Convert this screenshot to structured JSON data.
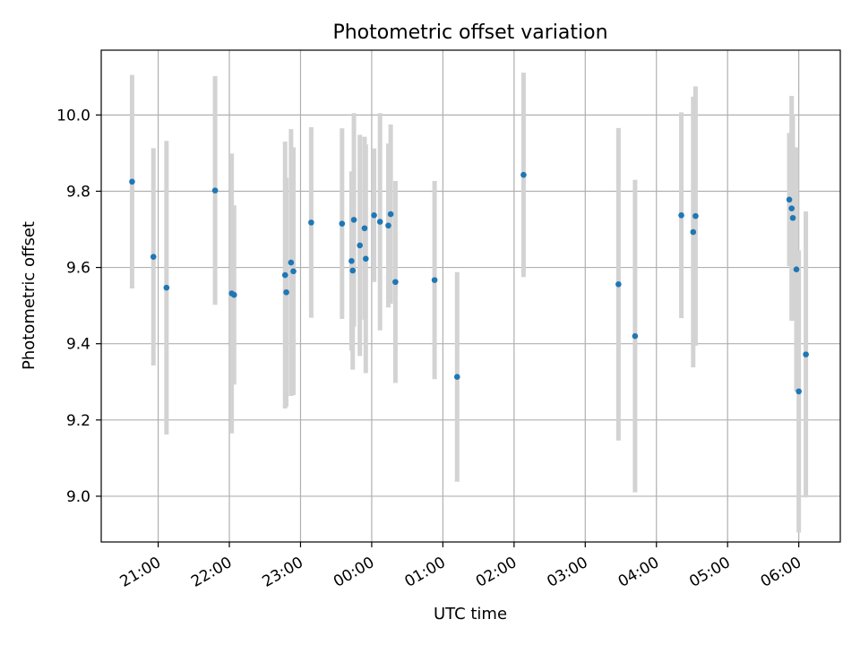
{
  "chart_data": {
    "type": "scatter",
    "title": "Photometric offset variation",
    "xlabel": "UTC time",
    "ylabel": "Photometric offset",
    "x_tick_labels": [
      "21:00",
      "22:00",
      "23:00",
      "00:00",
      "01:00",
      "02:00",
      "03:00",
      "04:00",
      "05:00",
      "06:00"
    ],
    "y_tick_labels": [
      "9.0",
      "9.2",
      "9.4",
      "9.6",
      "9.8",
      "10.0"
    ],
    "x_ticks": [
      "21:00",
      "22:00",
      "23:00",
      "00:00",
      "01:00",
      "02:00",
      "03:00",
      "04:00",
      "05:00",
      "06:00"
    ],
    "y_ticks": [
      9.0,
      9.2,
      9.4,
      9.6,
      9.8,
      10.0
    ],
    "xlim": [
      "20:12",
      "06:35"
    ],
    "ylim": [
      8.88,
      10.17
    ],
    "grid": true,
    "x_tick_rotation": "30deg",
    "marker_color": "#1f77b4",
    "errorbar_color": "#d3d3d3",
    "points": [
      {
        "x": "20:38",
        "y": 9.825,
        "err": 0.28
      },
      {
        "x": "20:56",
        "y": 9.628,
        "err": 0.285
      },
      {
        "x": "21:07",
        "y": 9.547,
        "err": 0.385
      },
      {
        "x": "21:48",
        "y": 9.802,
        "err": 0.3
      },
      {
        "x": "22:02",
        "y": 9.532,
        "err": 0.367
      },
      {
        "x": "22:04",
        "y": 9.528,
        "err": 0.235
      },
      {
        "x": "22:47",
        "y": 9.58,
        "err": 0.35
      },
      {
        "x": "22:48",
        "y": 9.535,
        "err": 0.3
      },
      {
        "x": "22:52",
        "y": 9.613,
        "err": 0.35
      },
      {
        "x": "22:54",
        "y": 9.59,
        "err": 0.325
      },
      {
        "x": "23:09",
        "y": 9.718,
        "err": 0.25
      },
      {
        "x": "23:35",
        "y": 9.715,
        "err": 0.25
      },
      {
        "x": "23:43",
        "y": 9.617,
        "err": 0.235
      },
      {
        "x": "23:44",
        "y": 9.592,
        "err": 0.26
      },
      {
        "x": "23:45",
        "y": 9.725,
        "err": 0.28
      },
      {
        "x": "23:50",
        "y": 9.658,
        "err": 0.29
      },
      {
        "x": "23:54",
        "y": 9.703,
        "err": 0.24
      },
      {
        "x": "23:55",
        "y": 9.623,
        "err": 0.3
      },
      {
        "x": "00:02",
        "y": 9.737,
        "err": 0.175
      },
      {
        "x": "00:07",
        "y": 9.72,
        "err": 0.285
      },
      {
        "x": "00:14",
        "y": 9.71,
        "err": 0.215
      },
      {
        "x": "00:16",
        "y": 9.74,
        "err": 0.235
      },
      {
        "x": "00:20",
        "y": 9.562,
        "err": 0.265
      },
      {
        "x": "00:53",
        "y": 9.567,
        "err": 0.26
      },
      {
        "x": "01:12",
        "y": 9.313,
        "err": 0.275
      },
      {
        "x": "02:08",
        "y": 9.843,
        "err": 0.268
      },
      {
        "x": "03:28",
        "y": 9.556,
        "err": 0.41
      },
      {
        "x": "03:42",
        "y": 9.42,
        "err": 0.41
      },
      {
        "x": "04:21",
        "y": 9.737,
        "err": 0.27
      },
      {
        "x": "04:31",
        "y": 9.693,
        "err": 0.355
      },
      {
        "x": "04:33",
        "y": 9.735,
        "err": 0.34
      },
      {
        "x": "05:52",
        "y": 9.778,
        "err": 0.175
      },
      {
        "x": "05:54",
        "y": 9.755,
        "err": 0.295
      },
      {
        "x": "05:55",
        "y": 9.73,
        "err": 0.27
      },
      {
        "x": "05:58",
        "y": 9.595,
        "err": 0.32
      },
      {
        "x": "06:00",
        "y": 9.275,
        "err": 0.37
      },
      {
        "x": "06:06",
        "y": 9.372,
        "err": 0.375
      }
    ]
  }
}
